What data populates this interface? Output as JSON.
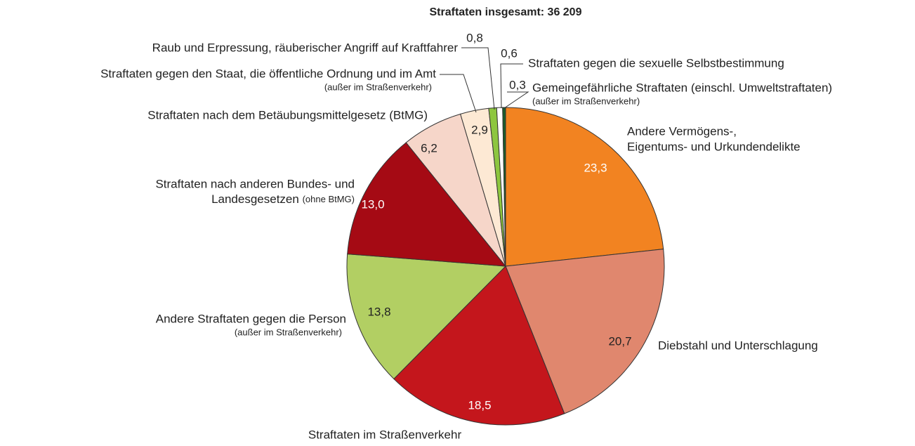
{
  "chart_data": {
    "type": "pie",
    "title": "Straftaten insgesamt: 36 209",
    "categories": [
      [
        "Andere Vermögens-,",
        "Eigentums- und Urkundendelikte"
      ],
      [
        "Diebstahl und Unterschlagung"
      ],
      [
        "Straftaten im Straßenverkehr"
      ],
      [
        "Andere Straftaten gegen die Person"
      ],
      [
        "Straftaten nach anderen Bundes- und",
        "Landesgesetzen"
      ],
      [
        "Straftaten nach dem Betäubungsmittelgesetz (BtMG)"
      ],
      [
        "Straftaten gegen den Staat, die öffentliche Ordnung und im Amt"
      ],
      [
        "Raub und Erpressung, räuberischer Angriff auf Kraftfahrer"
      ],
      [
        "Straftaten gegen die sexuelle Selbstbestimmung"
      ],
      [
        "Gemeingefährliche Straftaten (einschl. Umweltstraftaten)"
      ]
    ],
    "category_notes": [
      null,
      null,
      null,
      "(außer im Straßenverkehr)",
      "(ohne BtMG)",
      null,
      "(außer im Straßenverkehr)",
      null,
      null,
      "(außer im Straßenverkehr)"
    ],
    "values": [
      23.3,
      20.7,
      18.5,
      13.8,
      13.0,
      6.2,
      2.9,
      0.8,
      0.6,
      0.3
    ],
    "value_labels": [
      "23,3",
      "20,7",
      "18,5",
      "13,8",
      "13,0",
      "6,2",
      "2,9",
      "0,8",
      "0,6",
      "0,3"
    ],
    "colors": [
      "#f28321",
      "#e0876e",
      "#c4161c",
      "#b2cf63",
      "#a50a14",
      "#f6d6c9",
      "#fde9d4",
      "#8dc63f",
      "#ffffff",
      "#1a5e2a"
    ]
  }
}
